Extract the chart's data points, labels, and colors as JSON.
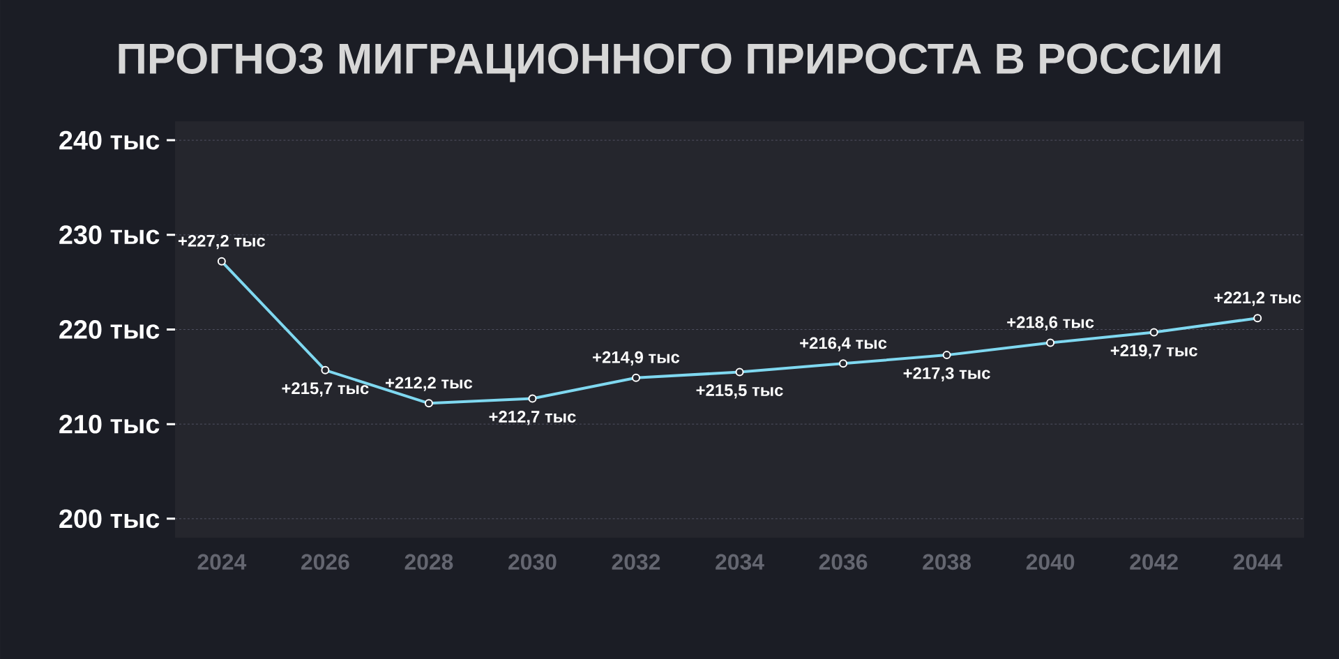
{
  "chart_data": {
    "type": "line",
    "title": "ПРОГНОЗ МИГРАЦИОННОГО ПРИРОСТА В РОССИИ",
    "categories": [
      "2024",
      "2026",
      "2028",
      "2030",
      "2032",
      "2034",
      "2036",
      "2038",
      "2040",
      "2042",
      "2044"
    ],
    "values": [
      227.2,
      215.7,
      212.2,
      212.7,
      214.9,
      215.5,
      216.4,
      217.3,
      218.6,
      219.7,
      221.2
    ],
    "value_labels": [
      "+227,2 тыс",
      "+215,7 тыс",
      "+212,2 тыс",
      "+212,7 тыс",
      "+214,9 тыс",
      "+215,5 тыс",
      "+216,4 тыс",
      "+217,3 тыс",
      "+218,6 тыс",
      "+219,7 тыс",
      "+221,2 тыс"
    ],
    "color": "#7fd8f0",
    "ylim": [
      198,
      242
    ],
    "yticks": [
      {
        "value": 200,
        "label": "200 тыс"
      },
      {
        "value": 210,
        "label": "210 тыс"
      },
      {
        "value": 220,
        "label": "220 тыс"
      },
      {
        "value": 230,
        "label": "230 тыс"
      },
      {
        "value": 240,
        "label": "240 тыс"
      }
    ],
    "grid": "y",
    "marker": "circle",
    "line_style": "solid"
  }
}
